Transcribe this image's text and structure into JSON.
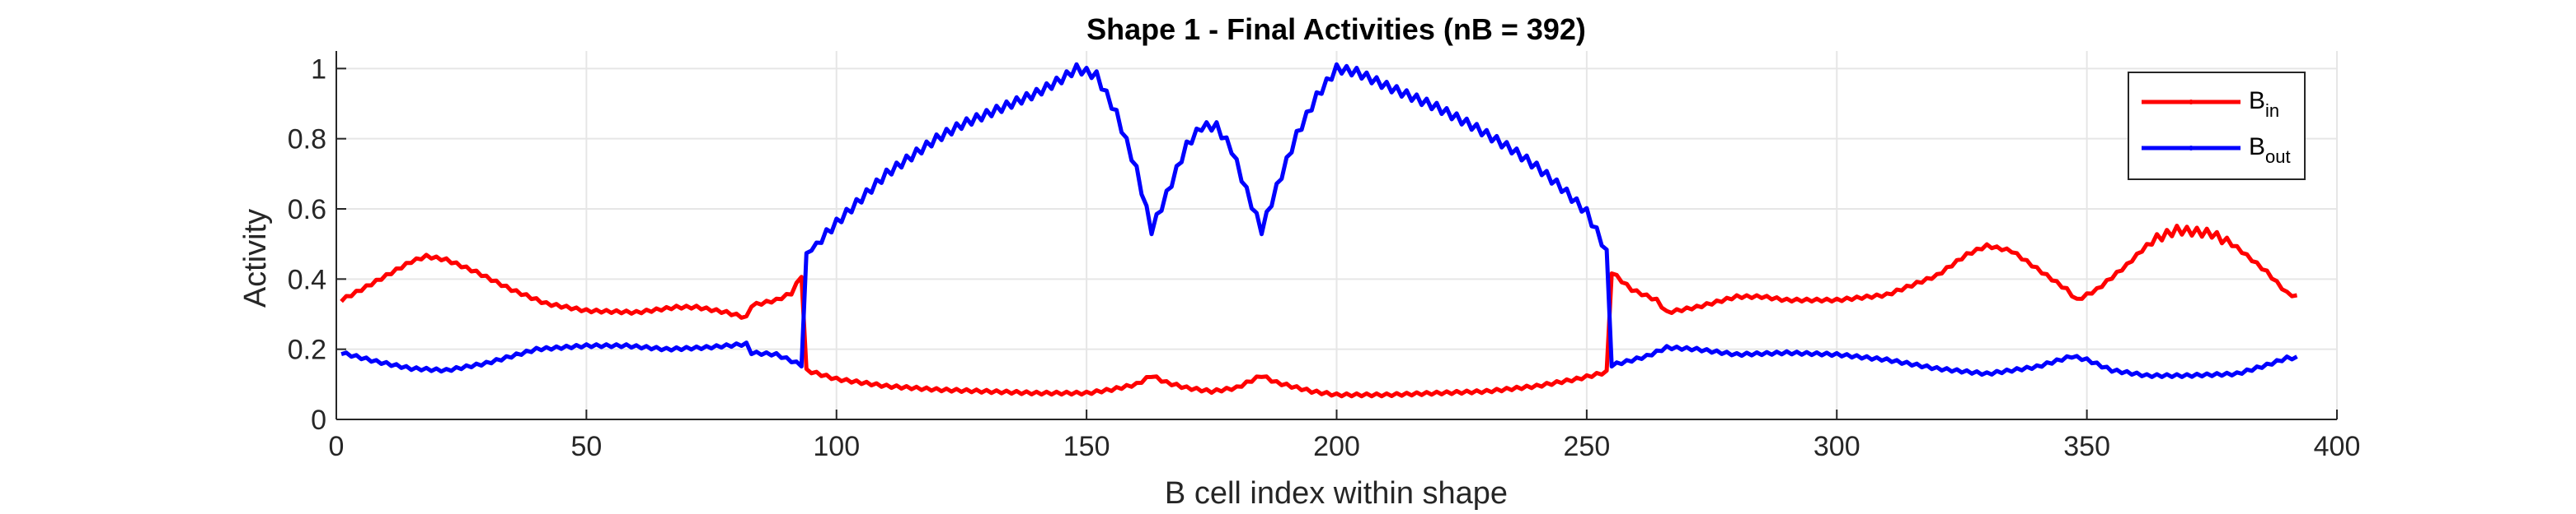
{
  "chart_data": {
    "type": "line",
    "title": "Shape 1 - Final Activities (nB = 392)",
    "xlabel": "B cell index within shape",
    "ylabel": "Activity",
    "xlim": [
      0,
      400
    ],
    "ylim": [
      0,
      1.05
    ],
    "xticks": [
      "0",
      "50",
      "100",
      "150",
      "200",
      "250",
      "300",
      "350",
      "400"
    ],
    "yticks": [
      "0",
      "0.2",
      "0.4",
      "0.6",
      "0.8",
      "1"
    ],
    "grid": true,
    "legend_position": "top-right",
    "n_points": 392,
    "series": [
      {
        "name_main": "B",
        "name_sub": "in",
        "color": "#ff0000",
        "anchors": [
          [
            1,
            0.34
          ],
          [
            5,
            0.37
          ],
          [
            10,
            0.41
          ],
          [
            15,
            0.45
          ],
          [
            18,
            0.465
          ],
          [
            22,
            0.455
          ],
          [
            28,
            0.42
          ],
          [
            35,
            0.37
          ],
          [
            42,
            0.33
          ],
          [
            50,
            0.31
          ],
          [
            60,
            0.305
          ],
          [
            68,
            0.32
          ],
          [
            72,
            0.32
          ],
          [
            78,
            0.305
          ],
          [
            82,
            0.29
          ],
          [
            83,
            0.325
          ],
          [
            88,
            0.34
          ],
          [
            91,
            0.36
          ],
          [
            93,
            0.41
          ],
          [
            94,
            0.14
          ],
          [
            100,
            0.115
          ],
          [
            110,
            0.095
          ],
          [
            120,
            0.085
          ],
          [
            130,
            0.08
          ],
          [
            140,
            0.075
          ],
          [
            150,
            0.075
          ],
          [
            155,
            0.085
          ],
          [
            160,
            0.1
          ],
          [
            163,
            0.125
          ],
          [
            166,
            0.105
          ],
          [
            170,
            0.09
          ],
          [
            175,
            0.08
          ],
          [
            180,
            0.09
          ],
          [
            185,
            0.125
          ],
          [
            188,
            0.105
          ],
          [
            195,
            0.08
          ],
          [
            200,
            0.07
          ],
          [
            210,
            0.07
          ],
          [
            220,
            0.075
          ],
          [
            230,
            0.08
          ],
          [
            240,
            0.095
          ],
          [
            248,
            0.115
          ],
          [
            254,
            0.135
          ],
          [
            255,
            0.42
          ],
          [
            259,
            0.37
          ],
          [
            264,
            0.34
          ],
          [
            266,
            0.305
          ],
          [
            272,
            0.32
          ],
          [
            280,
            0.35
          ],
          [
            285,
            0.35
          ],
          [
            290,
            0.34
          ],
          [
            300,
            0.34
          ],
          [
            310,
            0.355
          ],
          [
            320,
            0.41
          ],
          [
            326,
            0.47
          ],
          [
            330,
            0.495
          ],
          [
            335,
            0.48
          ],
          [
            342,
            0.41
          ],
          [
            346,
            0.37
          ],
          [
            348,
            0.34
          ],
          [
            352,
            0.37
          ],
          [
            358,
            0.44
          ],
          [
            363,
            0.51
          ],
          [
            368,
            0.54
          ],
          [
            375,
            0.53
          ],
          [
            380,
            0.49
          ],
          [
            386,
            0.42
          ],
          [
            390,
            0.36
          ],
          [
            392,
            0.35
          ]
        ]
      },
      {
        "name_main": "B",
        "name_sub": "out",
        "color": "#0000ff",
        "anchors": [
          [
            1,
            0.19
          ],
          [
            8,
            0.165
          ],
          [
            15,
            0.145
          ],
          [
            22,
            0.14
          ],
          [
            30,
            0.16
          ],
          [
            40,
            0.2
          ],
          [
            50,
            0.21
          ],
          [
            58,
            0.21
          ],
          [
            66,
            0.2
          ],
          [
            74,
            0.205
          ],
          [
            82,
            0.215
          ],
          [
            83,
            0.19
          ],
          [
            88,
            0.185
          ],
          [
            93,
            0.155
          ],
          [
            94,
            0.47
          ],
          [
            96,
            0.5
          ],
          [
            100,
            0.56
          ],
          [
            105,
            0.63
          ],
          [
            110,
            0.7
          ],
          [
            115,
            0.75
          ],
          [
            120,
            0.8
          ],
          [
            125,
            0.84
          ],
          [
            130,
            0.87
          ],
          [
            135,
            0.9
          ],
          [
            140,
            0.93
          ],
          [
            145,
            0.97
          ],
          [
            148,
            1.0
          ],
          [
            152,
            0.98
          ],
          [
            156,
            0.87
          ],
          [
            160,
            0.71
          ],
          [
            163,
            0.54
          ],
          [
            166,
            0.64
          ],
          [
            170,
            0.78
          ],
          [
            173,
            0.835
          ],
          [
            176,
            0.835
          ],
          [
            179,
            0.77
          ],
          [
            182,
            0.65
          ],
          [
            185,
            0.54
          ],
          [
            188,
            0.66
          ],
          [
            192,
            0.81
          ],
          [
            196,
            0.92
          ],
          [
            200,
            1.0
          ],
          [
            204,
            0.99
          ],
          [
            210,
            0.95
          ],
          [
            220,
            0.89
          ],
          [
            228,
            0.83
          ],
          [
            235,
            0.77
          ],
          [
            240,
            0.72
          ],
          [
            245,
            0.66
          ],
          [
            250,
            0.59
          ],
          [
            254,
            0.48
          ],
          [
            255,
            0.155
          ],
          [
            258,
            0.165
          ],
          [
            262,
            0.18
          ],
          [
            266,
            0.205
          ],
          [
            272,
            0.2
          ],
          [
            280,
            0.185
          ],
          [
            290,
            0.19
          ],
          [
            300,
            0.185
          ],
          [
            310,
            0.17
          ],
          [
            320,
            0.145
          ],
          [
            330,
            0.13
          ],
          [
            340,
            0.15
          ],
          [
            347,
            0.18
          ],
          [
            350,
            0.17
          ],
          [
            355,
            0.14
          ],
          [
            362,
            0.125
          ],
          [
            370,
            0.125
          ],
          [
            380,
            0.13
          ],
          [
            386,
            0.155
          ],
          [
            390,
            0.175
          ],
          [
            392,
            0.175
          ]
        ]
      }
    ]
  }
}
